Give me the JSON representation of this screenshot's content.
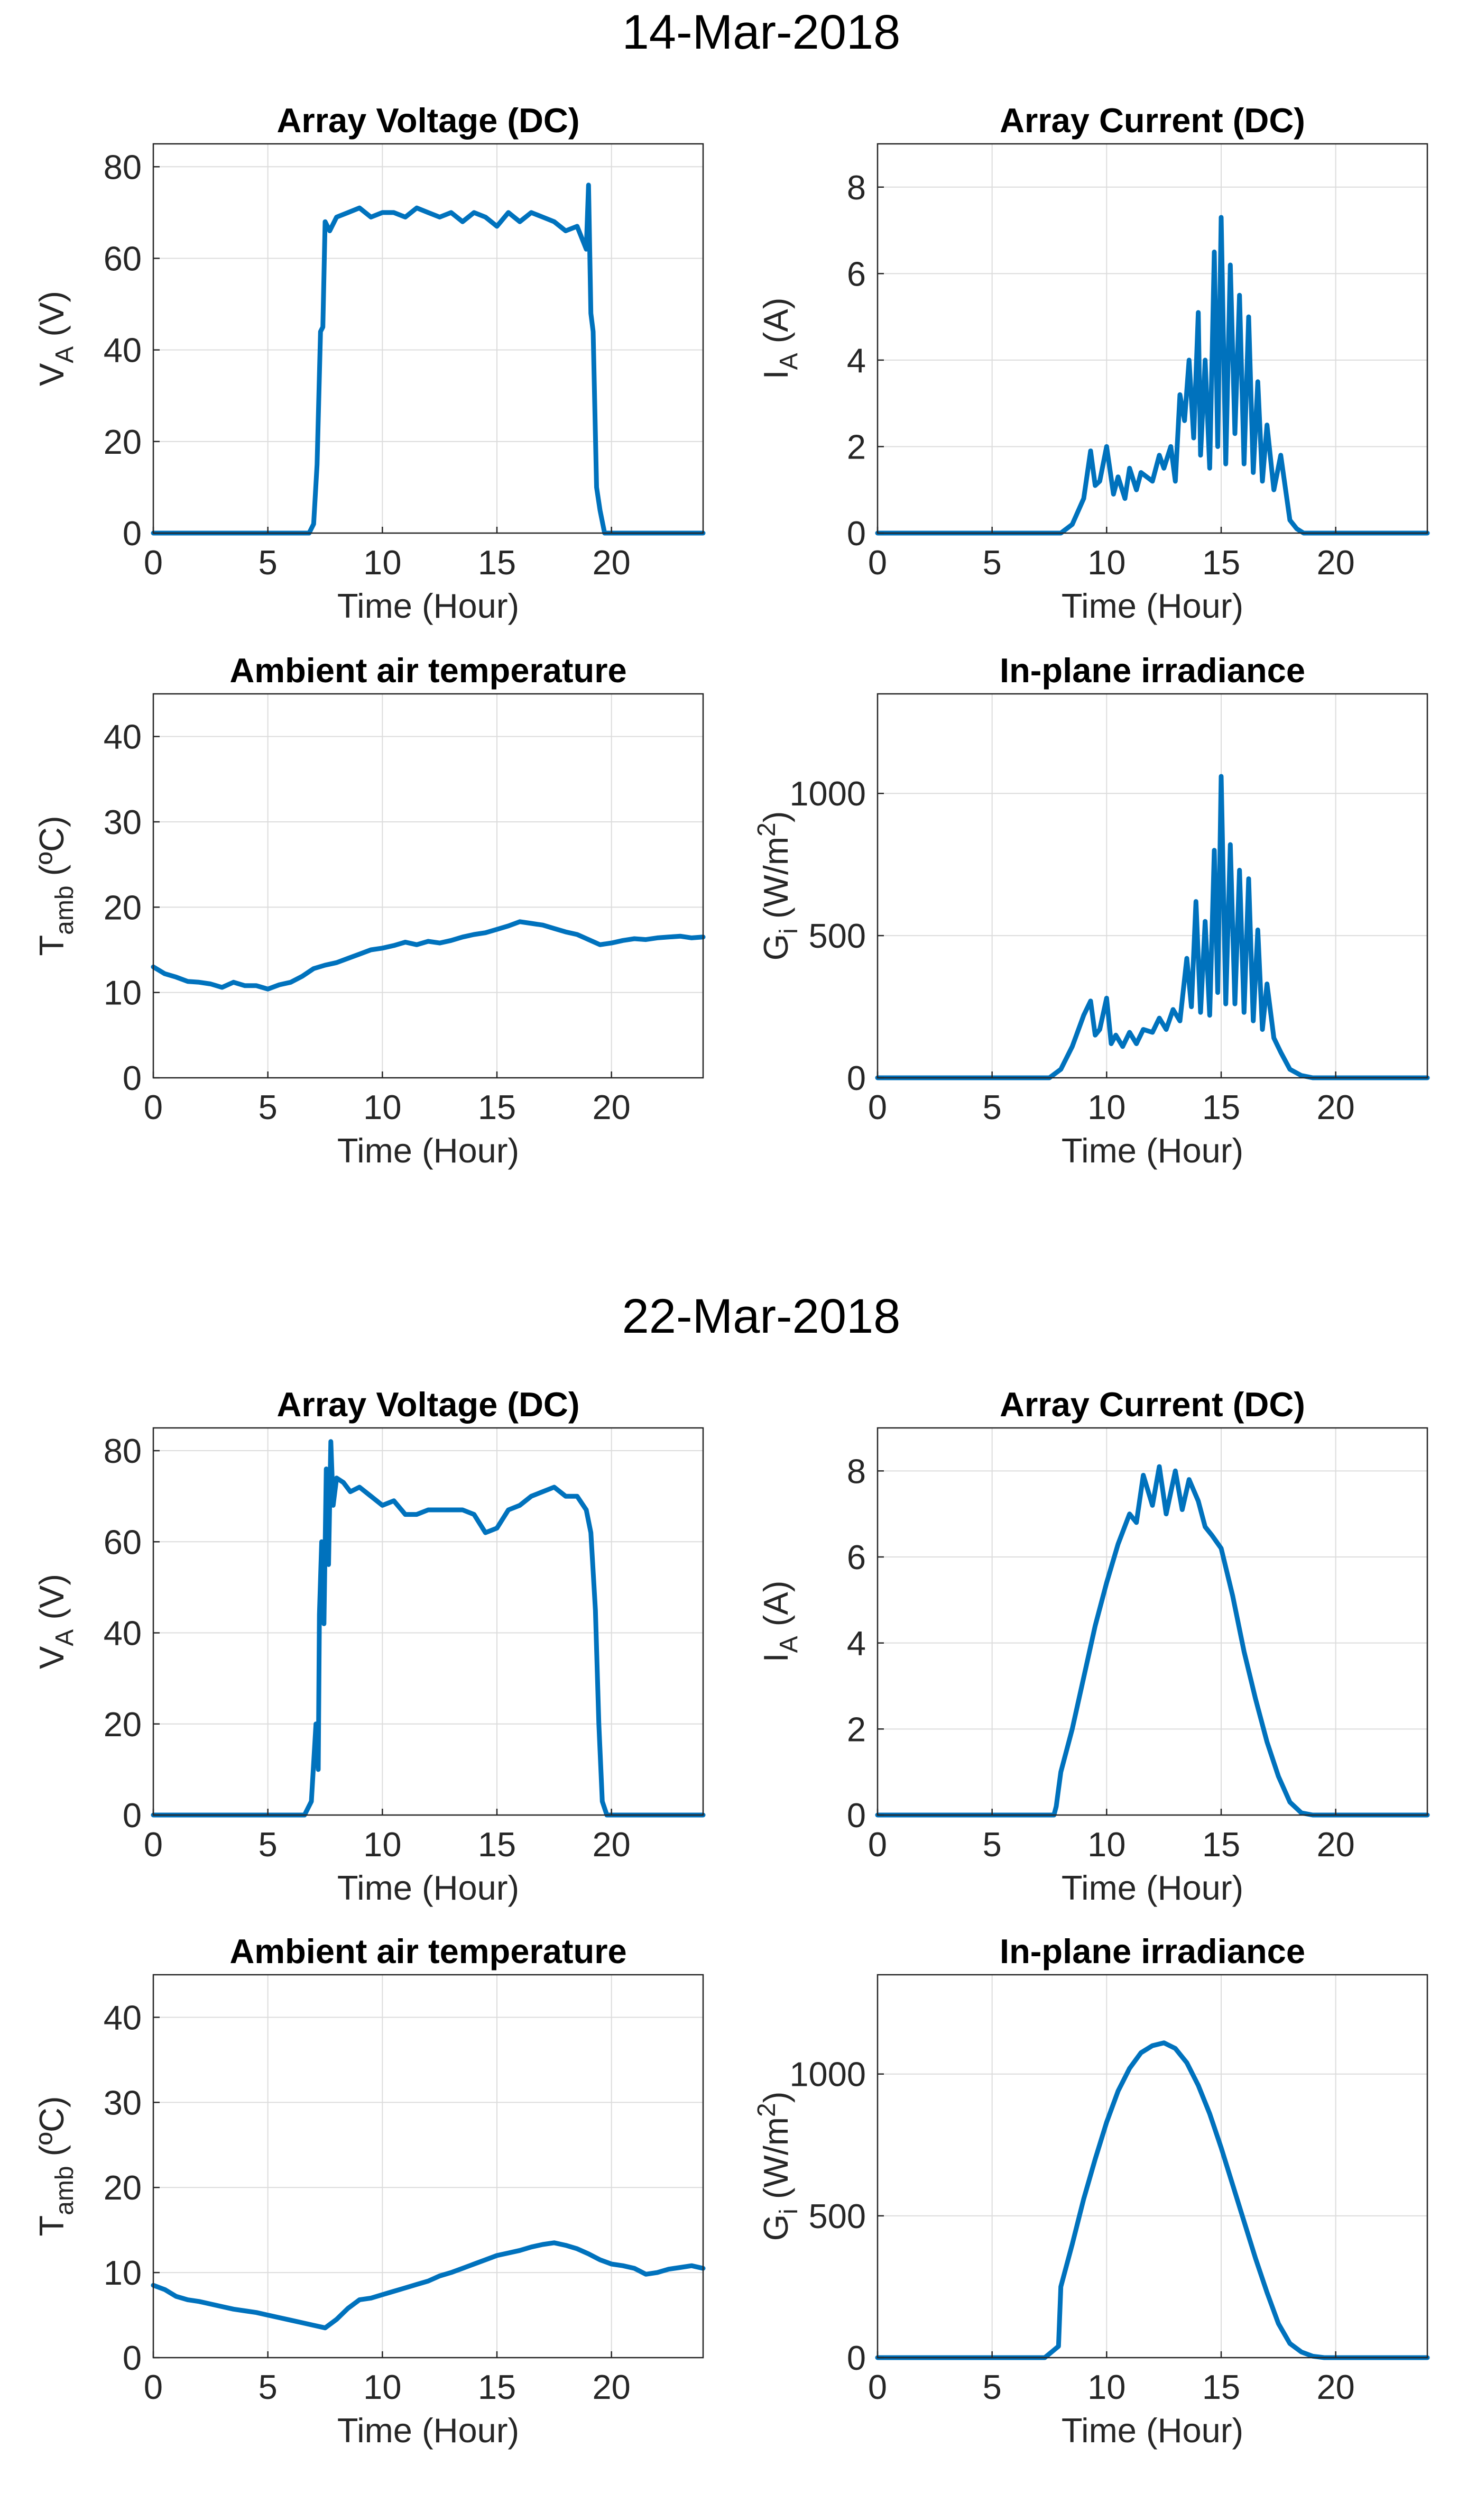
{
  "figure_titles": [
    "14-Mar-2018",
    "22-Mar-2018"
  ],
  "series_color": "#0072BD",
  "chart_data": [
    {
      "type": "line",
      "date": "14-Mar-2018",
      "title": "Array Voltage (DC)",
      "xlabel": "Time (Hour)",
      "ylabel": {
        "main": "V",
        "sub": "A",
        "tail": " (V)"
      },
      "xlim": [
        0,
        24
      ],
      "ylim": [
        0,
        85
      ],
      "xticks": [
        0,
        5,
        10,
        15,
        20
      ],
      "yticks": [
        0,
        20,
        40,
        60,
        80
      ],
      "x": [
        0,
        6.8,
        7.0,
        7.15,
        7.3,
        7.4,
        7.5,
        7.7,
        8.0,
        8.5,
        9.0,
        9.5,
        10.0,
        10.5,
        11.0,
        11.5,
        12.0,
        12.5,
        13.0,
        13.5,
        14.0,
        14.5,
        15.0,
        15.5,
        16.0,
        16.5,
        17.0,
        17.5,
        18.0,
        18.5,
        18.9,
        19.0,
        19.1,
        19.2,
        19.35,
        19.5,
        19.7,
        20.0,
        24.0
      ],
      "y": [
        0,
        0,
        2,
        15,
        44,
        45,
        68,
        66,
        69,
        70,
        71,
        69,
        70,
        70,
        69,
        71,
        70,
        69,
        70,
        68,
        70,
        69,
        67,
        70,
        68,
        70,
        69,
        68,
        66,
        67,
        62,
        76,
        48,
        44,
        10,
        5,
        0,
        0,
        0
      ]
    },
    {
      "type": "line",
      "date": "14-Mar-2018",
      "title": "Array Current (DC)",
      "xlabel": "Time (Hour)",
      "ylabel": {
        "main": "I",
        "sub": "A",
        "tail": " (A)"
      },
      "xlim": [
        0,
        24
      ],
      "ylim": [
        0,
        9
      ],
      "xticks": [
        0,
        5,
        10,
        15,
        20
      ],
      "yticks": [
        0,
        2,
        4,
        6,
        8
      ],
      "x": [
        0,
        8.0,
        8.5,
        9.0,
        9.3,
        9.5,
        9.7,
        10.0,
        10.3,
        10.5,
        10.8,
        11.0,
        11.3,
        11.5,
        12.0,
        12.3,
        12.5,
        12.8,
        13.0,
        13.2,
        13.4,
        13.6,
        13.8,
        14.0,
        14.1,
        14.3,
        14.5,
        14.7,
        14.85,
        15.0,
        15.2,
        15.4,
        15.6,
        15.8,
        16.0,
        16.2,
        16.4,
        16.6,
        16.8,
        17.0,
        17.3,
        17.6,
        18.0,
        18.3,
        18.6,
        19.0,
        24.0
      ],
      "y": [
        0,
        0,
        0.2,
        0.8,
        1.9,
        1.1,
        1.2,
        2.0,
        0.9,
        1.3,
        0.8,
        1.5,
        1.0,
        1.4,
        1.2,
        1.8,
        1.5,
        2.0,
        1.2,
        3.2,
        2.6,
        4.0,
        2.2,
        5.1,
        1.8,
        4.0,
        1.5,
        6.5,
        2.0,
        7.3,
        1.6,
        6.2,
        2.3,
        5.5,
        1.6,
        5.0,
        1.4,
        3.5,
        1.2,
        2.5,
        1.0,
        1.8,
        0.3,
        0.1,
        0,
        0,
        0
      ]
    },
    {
      "type": "line",
      "date": "14-Mar-2018",
      "title": "Ambient air temperature",
      "xlabel": "Time (Hour)",
      "ylabel": {
        "main": "T",
        "sub": "amb",
        "tail": " (ºC)"
      },
      "xlim": [
        0,
        24
      ],
      "ylim": [
        0,
        45
      ],
      "xticks": [
        0,
        5,
        10,
        15,
        20
      ],
      "yticks": [
        0,
        10,
        20,
        30,
        40
      ],
      "x": [
        0,
        0.5,
        1,
        1.5,
        2,
        2.5,
        3,
        3.5,
        4,
        4.5,
        5,
        5.5,
        6,
        6.5,
        7,
        7.5,
        8,
        8.5,
        9,
        9.5,
        10,
        10.5,
        11,
        11.5,
        12,
        12.5,
        13,
        13.5,
        14,
        14.5,
        15,
        15.5,
        16,
        16.5,
        17,
        17.5,
        18,
        18.5,
        19,
        19.5,
        20,
        20.5,
        21,
        21.5,
        22,
        22.5,
        23,
        23.5,
        24
      ],
      "y": [
        13,
        12.2,
        11.8,
        11.3,
        11.2,
        11.0,
        10.6,
        11.2,
        10.8,
        10.8,
        10.4,
        10.9,
        11.2,
        11.9,
        12.8,
        13.2,
        13.5,
        14.0,
        14.5,
        15.0,
        15.2,
        15.5,
        15.9,
        15.6,
        16.0,
        15.8,
        16.1,
        16.5,
        16.8,
        17.0,
        17.4,
        17.8,
        18.3,
        18.1,
        17.9,
        17.5,
        17.1,
        16.8,
        16.2,
        15.6,
        15.8,
        16.1,
        16.3,
        16.2,
        16.4,
        16.5,
        16.6,
        16.4,
        16.5
      ]
    },
    {
      "type": "line",
      "date": "14-Mar-2018",
      "title": "In-plane irradiance",
      "xlabel": "Time (Hour)",
      "ylabel": {
        "main": "G",
        "sub": "i",
        "tail": " (W/m",
        "sup": "2",
        "close": ")"
      },
      "xlim": [
        0,
        24
      ],
      "ylim": [
        0,
        1350
      ],
      "xticks": [
        0,
        5,
        10,
        15,
        20
      ],
      "yticks": [
        0,
        500,
        1000
      ],
      "x": [
        0,
        7.5,
        8.0,
        8.5,
        9.0,
        9.3,
        9.5,
        9.7,
        10.0,
        10.2,
        10.4,
        10.7,
        11.0,
        11.3,
        11.6,
        12.0,
        12.3,
        12.6,
        12.9,
        13.2,
        13.5,
        13.7,
        13.9,
        14.1,
        14.3,
        14.5,
        14.7,
        14.85,
        15.0,
        15.2,
        15.4,
        15.6,
        15.8,
        16.0,
        16.2,
        16.4,
        16.6,
        16.8,
        17.0,
        17.3,
        17.6,
        18.0,
        18.5,
        19.0,
        19.5,
        24.0
      ],
      "y": [
        0,
        0,
        30,
        110,
        220,
        270,
        150,
        170,
        280,
        120,
        150,
        110,
        160,
        120,
        170,
        160,
        210,
        170,
        240,
        200,
        420,
        250,
        620,
        230,
        550,
        220,
        800,
        300,
        1060,
        260,
        820,
        260,
        730,
        230,
        700,
        200,
        520,
        170,
        330,
        140,
        90,
        30,
        8,
        0,
        0,
        0
      ]
    },
    {
      "type": "line",
      "date": "22-Mar-2018",
      "title": "Array Voltage (DC)",
      "xlabel": "Time (Hour)",
      "ylabel": {
        "main": "V",
        "sub": "A",
        "tail": " (V)"
      },
      "xlim": [
        0,
        24
      ],
      "ylim": [
        0,
        85
      ],
      "xticks": [
        0,
        5,
        10,
        15,
        20
      ],
      "yticks": [
        0,
        20,
        40,
        60,
        80
      ],
      "x": [
        0,
        6.6,
        6.9,
        7.1,
        7.2,
        7.25,
        7.35,
        7.45,
        7.55,
        7.65,
        7.75,
        7.85,
        8.0,
        8.3,
        8.6,
        9.0,
        9.5,
        10.0,
        10.5,
        11.0,
        11.5,
        12.0,
        12.5,
        13.0,
        13.5,
        14.0,
        14.5,
        15.0,
        15.5,
        16.0,
        16.5,
        17.0,
        17.5,
        18.0,
        18.5,
        18.9,
        19.1,
        19.3,
        19.45,
        19.6,
        19.8,
        20.0,
        24.0
      ],
      "y": [
        0,
        0,
        3,
        20,
        10,
        44,
        60,
        42,
        76,
        55,
        82,
        68,
        74,
        73,
        71,
        72,
        70,
        68,
        69,
        66,
        66,
        67,
        67,
        67,
        67,
        66,
        62,
        63,
        67,
        68,
        70,
        71,
        72,
        70,
        70,
        67,
        62,
        45,
        20,
        3,
        0,
        0,
        0
      ]
    },
    {
      "type": "line",
      "date": "22-Mar-2018",
      "title": "Array Current (DC)",
      "xlabel": "Time (Hour)",
      "ylabel": {
        "main": "I",
        "sub": "A",
        "tail": " (A)"
      },
      "xlim": [
        0,
        24
      ],
      "ylim": [
        0,
        9
      ],
      "xticks": [
        0,
        5,
        10,
        15,
        20
      ],
      "yticks": [
        0,
        2,
        4,
        6,
        8
      ],
      "x": [
        0,
        7.7,
        7.8,
        7.9,
        8.0,
        8.5,
        9.0,
        9.5,
        10.0,
        10.5,
        11.0,
        11.3,
        11.6,
        12.0,
        12.3,
        12.6,
        13.0,
        13.3,
        13.6,
        14.0,
        14.3,
        14.6,
        15.0,
        15.5,
        16.0,
        16.5,
        17.0,
        17.5,
        18.0,
        18.5,
        19.0,
        24.0
      ],
      "y": [
        0,
        0,
        0.2,
        0.6,
        1.0,
        2.0,
        3.2,
        4.4,
        5.4,
        6.3,
        7.0,
        6.8,
        7.9,
        7.2,
        8.1,
        7.0,
        8.0,
        7.1,
        7.8,
        7.3,
        6.7,
        6.5,
        6.2,
        5.1,
        3.8,
        2.7,
        1.7,
        0.9,
        0.3,
        0.05,
        0,
        0
      ]
    },
    {
      "type": "line",
      "date": "22-Mar-2018",
      "title": "Ambient air temperature",
      "xlabel": "Time (Hour)",
      "ylabel": {
        "main": "T",
        "sub": "amb",
        "tail": " (ºC)"
      },
      "xlim": [
        0,
        24
      ],
      "ylim": [
        0,
        45
      ],
      "xticks": [
        0,
        5,
        10,
        15,
        20
      ],
      "yticks": [
        0,
        10,
        20,
        30,
        40
      ],
      "x": [
        0,
        0.5,
        1,
        1.5,
        2,
        2.5,
        3,
        3.5,
        4,
        4.5,
        5,
        5.5,
        6,
        6.5,
        7,
        7.5,
        8,
        8.5,
        9,
        9.5,
        10,
        10.5,
        11,
        11.5,
        12,
        12.5,
        13,
        13.5,
        14,
        14.5,
        15,
        15.5,
        16,
        16.5,
        17,
        17.5,
        18,
        18.5,
        19,
        19.5,
        20,
        20.5,
        21,
        21.5,
        22,
        22.5,
        23,
        23.5,
        24
      ],
      "y": [
        8.5,
        8.0,
        7.2,
        6.8,
        6.6,
        6.3,
        6.0,
        5.7,
        5.5,
        5.3,
        5.0,
        4.7,
        4.4,
        4.1,
        3.8,
        3.5,
        4.5,
        5.8,
        6.8,
        7.0,
        7.4,
        7.8,
        8.2,
        8.6,
        9.0,
        9.6,
        10.0,
        10.5,
        11.0,
        11.5,
        12.0,
        12.3,
        12.6,
        13.0,
        13.3,
        13.5,
        13.2,
        12.8,
        12.2,
        11.5,
        11.0,
        10.8,
        10.5,
        9.8,
        10.0,
        10.4,
        10.6,
        10.8,
        10.5
      ]
    },
    {
      "type": "line",
      "date": "22-Mar-2018",
      "title": "In-plane irradiance",
      "xlabel": "Time (Hour)",
      "ylabel": {
        "main": "G",
        "sub": "i",
        "tail": " (W/m",
        "sup": "2",
        "close": ")"
      },
      "xlim": [
        0,
        24
      ],
      "ylim": [
        0,
        1350
      ],
      "xticks": [
        0,
        5,
        10,
        15,
        20
      ],
      "yticks": [
        0,
        500,
        1000
      ],
      "x": [
        0,
        7.3,
        7.6,
        7.9,
        8.0,
        8.5,
        9.0,
        9.5,
        10.0,
        10.5,
        11.0,
        11.5,
        12.0,
        12.5,
        13.0,
        13.5,
        14.0,
        14.5,
        15.0,
        15.5,
        16.0,
        16.5,
        17.0,
        17.5,
        18.0,
        18.5,
        19.0,
        19.5,
        20.0,
        24.0
      ],
      "y": [
        0,
        0,
        20,
        40,
        250,
        400,
        560,
        700,
        830,
        940,
        1020,
        1075,
        1100,
        1110,
        1090,
        1040,
        960,
        860,
        740,
        610,
        480,
        350,
        230,
        120,
        50,
        20,
        5,
        0,
        0,
        0
      ]
    }
  ]
}
